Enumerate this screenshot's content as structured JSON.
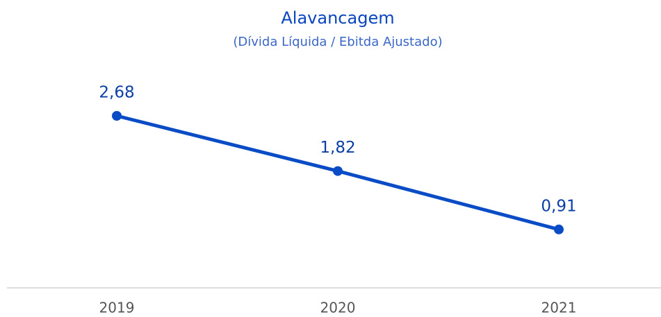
{
  "chart_data": {
    "type": "line",
    "title": "Alavancagem",
    "subtitle": "(Dívida Líquida / Ebitda Ajustado)",
    "categories": [
      "2019",
      "2020",
      "2021"
    ],
    "values": [
      2.68,
      1.82,
      0.91
    ],
    "value_labels": [
      "2,68",
      "1,82",
      "0,91"
    ],
    "color": "#0a4cc6"
  }
}
